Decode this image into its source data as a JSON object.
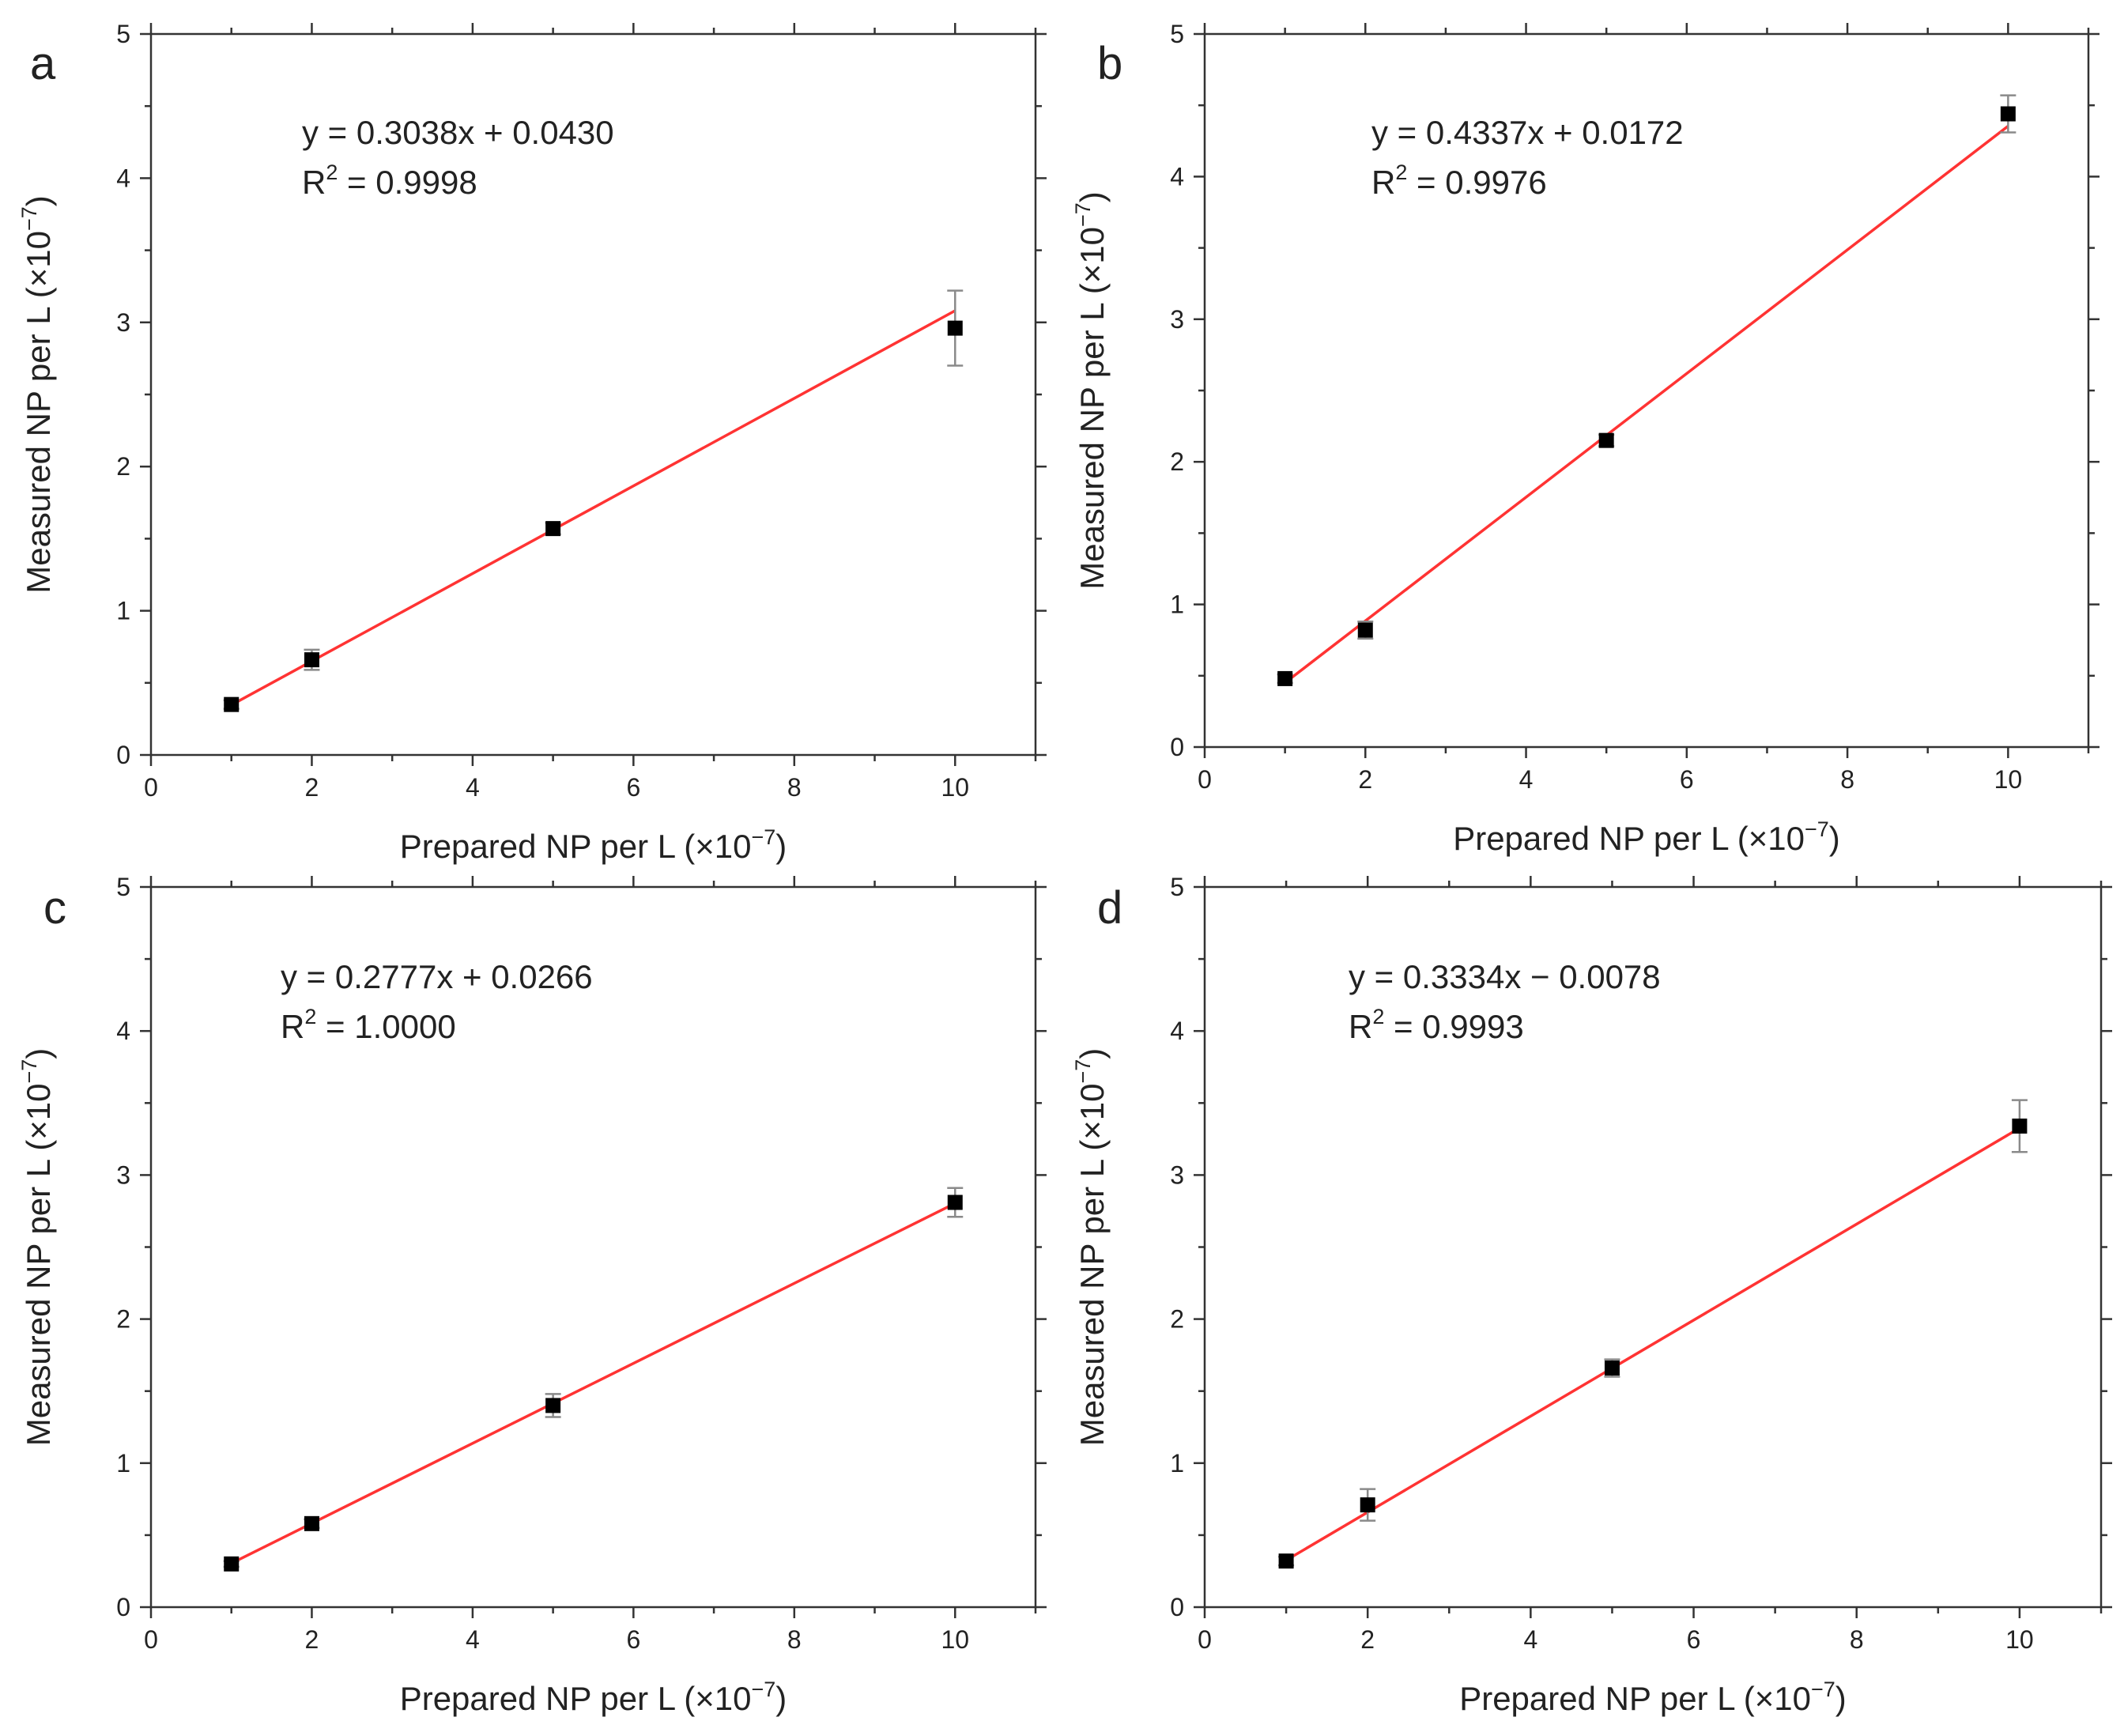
{
  "colors": {
    "fit_line": "#ff3333",
    "marker": "#000000",
    "error_bar": "#8a8a8a",
    "axis": "#333333"
  },
  "chart_data": [
    {
      "panel": "a",
      "type": "scatter",
      "xlabel": "Prepared NP per L (×10",
      "xlabel_exp": "−7",
      "xlabel_close": ")",
      "ylabel": "Measured NP per L (×10",
      "ylabel_exp": "−7",
      "ylabel_close": ")",
      "xlim": [
        0,
        11
      ],
      "ylim": [
        0,
        5
      ],
      "xticks": [
        "0",
        "2",
        "4",
        "6",
        "8",
        "10"
      ],
      "yticks": [
        "0",
        "1",
        "2",
        "3",
        "4",
        "5"
      ],
      "equation": "y = 0.3038x + 0.0430",
      "r2_prefix": "R",
      "r2_exp": "2",
      "r2_value": " = 0.9998",
      "fit": {
        "slope": 0.3038,
        "intercept": 0.043
      },
      "points": [
        {
          "x": 1,
          "y": 0.35,
          "err": 0.03
        },
        {
          "x": 2,
          "y": 0.66,
          "err": 0.07
        },
        {
          "x": 5,
          "y": 1.57,
          "err": 0.04
        },
        {
          "x": 10,
          "y": 2.96,
          "err": 0.26
        }
      ]
    },
    {
      "panel": "b",
      "type": "scatter",
      "xlabel": "Prepared NP per L (×10",
      "xlabel_exp": "−7",
      "xlabel_close": ")",
      "ylabel": "Measured NP per L (×10",
      "ylabel_exp": "−7",
      "ylabel_close": ")",
      "xlim": [
        0,
        11
      ],
      "ylim": [
        0,
        5
      ],
      "xticks": [
        "0",
        "2",
        "4",
        "6",
        "8",
        "10"
      ],
      "yticks": [
        "0",
        "1",
        "2",
        "3",
        "4",
        "5"
      ],
      "equation": "y = 0.4337x + 0.0172",
      "r2_prefix": "R",
      "r2_exp": "2",
      "r2_value": " = 0.9976",
      "fit": {
        "slope": 0.4337,
        "intercept": 0.0172
      },
      "points": [
        {
          "x": 1,
          "y": 0.48,
          "err": 0.03
        },
        {
          "x": 2,
          "y": 0.82,
          "err": 0.06
        },
        {
          "x": 5,
          "y": 2.15,
          "err": 0.04
        },
        {
          "x": 10,
          "y": 4.44,
          "err": 0.13
        }
      ]
    },
    {
      "panel": "c",
      "type": "scatter",
      "xlabel": "Prepared NP per L (×10",
      "xlabel_exp": "−7",
      "xlabel_close": ")",
      "ylabel": "Measured NP per L (×10",
      "ylabel_exp": "−7",
      "ylabel_close": ")",
      "xlim": [
        0,
        11
      ],
      "ylim": [
        0,
        5
      ],
      "xticks": [
        "0",
        "2",
        "4",
        "6",
        "8",
        "10"
      ],
      "yticks": [
        "0",
        "1",
        "2",
        "3",
        "4",
        "5"
      ],
      "equation": "y = 0.2777x + 0.0266",
      "r2_prefix": "R",
      "r2_exp": "2",
      "r2_value": " = 1.0000",
      "fit": {
        "slope": 0.2777,
        "intercept": 0.0266
      },
      "points": [
        {
          "x": 1,
          "y": 0.3,
          "err": 0.02
        },
        {
          "x": 2,
          "y": 0.58,
          "err": 0.03
        },
        {
          "x": 5,
          "y": 1.4,
          "err": 0.08
        },
        {
          "x": 10,
          "y": 2.81,
          "err": 0.1
        }
      ]
    },
    {
      "panel": "d",
      "type": "scatter",
      "xlabel": "Prepared NP per L (×10",
      "xlabel_exp": "−7",
      "xlabel_close": ")",
      "ylabel": "Measured NP per L (×10",
      "ylabel_exp": "−7",
      "ylabel_close": ")",
      "xlim": [
        0,
        11
      ],
      "ylim": [
        0,
        5
      ],
      "xticks": [
        "0",
        "2",
        "4",
        "6",
        "8",
        "10"
      ],
      "yticks": [
        "0",
        "1",
        "2",
        "3",
        "4",
        "5"
      ],
      "equation": "y = 0.3334x − 0.0078",
      "r2_prefix": "R",
      "r2_exp": "2",
      "r2_value": " = 0.9993",
      "fit": {
        "slope": 0.3334,
        "intercept": -0.0078
      },
      "points": [
        {
          "x": 1,
          "y": 0.32,
          "err": 0.03
        },
        {
          "x": 2,
          "y": 0.71,
          "err": 0.11
        },
        {
          "x": 5,
          "y": 1.66,
          "err": 0.06
        },
        {
          "x": 10,
          "y": 3.34,
          "err": 0.18
        }
      ]
    }
  ]
}
